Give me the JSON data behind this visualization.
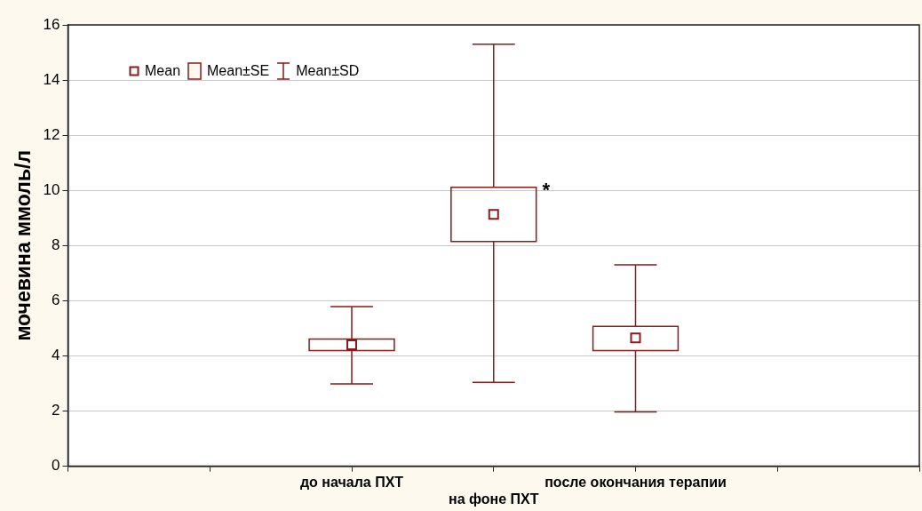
{
  "chart_data": {
    "type": "box",
    "ylabel": "мочевина ммоль/л",
    "categories": [
      null,
      null,
      "до начала ПХТ",
      "на фоне ПХТ",
      "после окончания терапии",
      null,
      null
    ],
    "boxes": [
      null,
      null,
      {
        "low": 2.98,
        "q1": 4.19,
        "median": 4.4,
        "q3": 4.61,
        "high": 5.79
      },
      {
        "low": 3.04,
        "q1": 8.15,
        "median": 9.13,
        "q3": 10.11,
        "high": 15.3
      },
      {
        "low": 1.97,
        "q1": 4.19,
        "median": 4.65,
        "q3": 5.07,
        "high": 7.3
      },
      null,
      null
    ],
    "color": "#8b1a1a",
    "ylim": [
      0,
      16
    ],
    "yticks": [
      0,
      2,
      4,
      6,
      8,
      10,
      12,
      14,
      16
    ],
    "grid": "y",
    "annotations": [
      "Mean",
      "Mean±SE",
      "Mean±SD",
      {
        "text": "*",
        "x": "на фоне ПХТ",
        "y": 10.1
      }
    ]
  }
}
